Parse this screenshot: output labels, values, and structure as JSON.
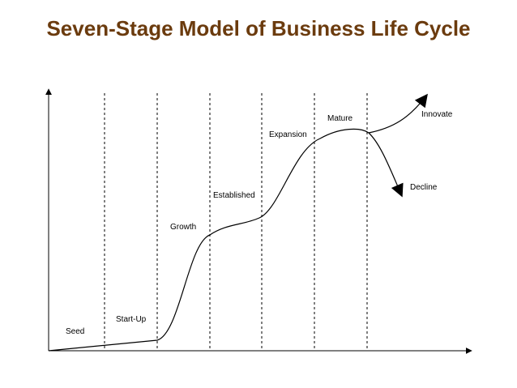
{
  "title": "Seven-Stage Model of Business Life Cycle",
  "stages": [
    "Seed",
    "Start-Up",
    "Growth",
    "Established",
    "Expansion",
    "Mature"
  ],
  "branches": [
    "Innovate",
    "Decline"
  ]
}
